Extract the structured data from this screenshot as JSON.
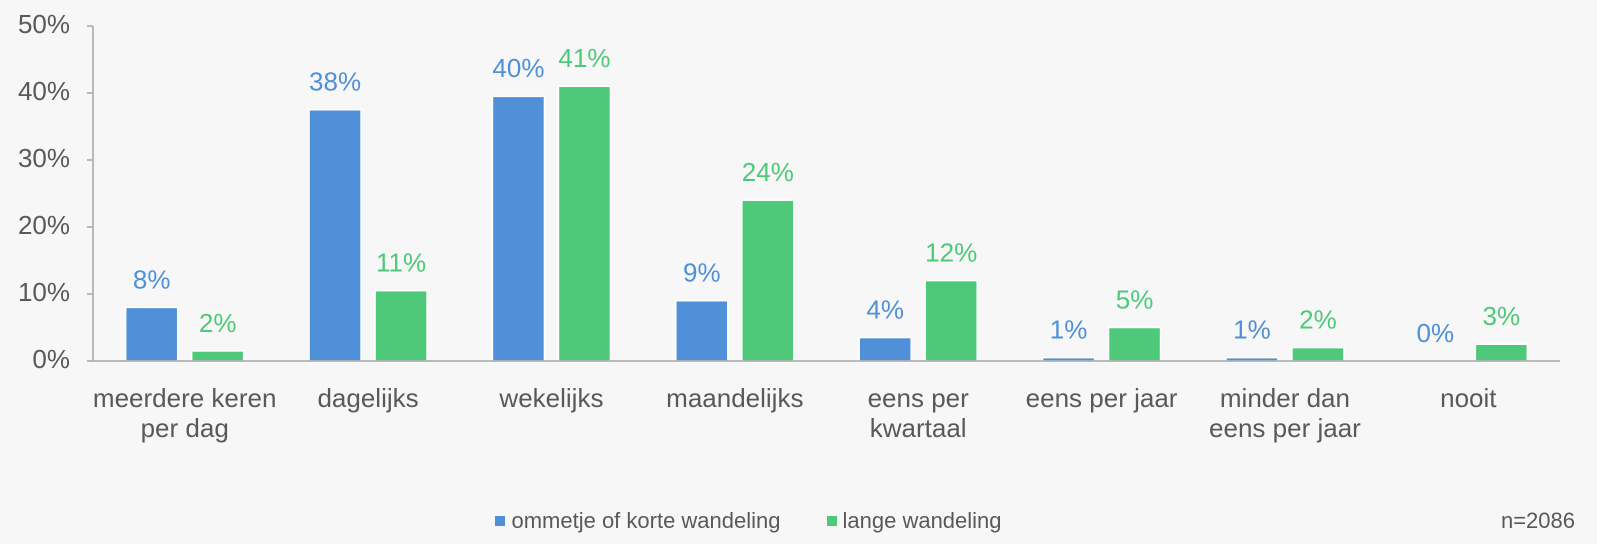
{
  "chart_data": {
    "type": "bar",
    "categories": [
      "meerdere keren per dag",
      "dagelijks",
      "wekelijks",
      "maandelijks",
      "eens per kwartaal",
      "eens per jaar",
      "minder dan eens per jaar",
      "nooit"
    ],
    "series": [
      {
        "name": "ommetje of korte wandeling",
        "color": "#4f90d8",
        "values": [
          8,
          37.5,
          39.5,
          9,
          3.5,
          0.5,
          0.5,
          0
        ],
        "value_labels": [
          "8%",
          "38%",
          "40%",
          "9%",
          "4%",
          "1%",
          "1%",
          "0%"
        ]
      },
      {
        "name": "lange wandeling",
        "color": "#4ec97a",
        "values": [
          1.5,
          10.5,
          41,
          24,
          12,
          5,
          2,
          2.5
        ],
        "value_labels": [
          "2%",
          "11%",
          "41%",
          "24%",
          "12%",
          "5%",
          "2%",
          "3%"
        ]
      }
    ],
    "ylim": [
      0,
      50
    ],
    "yticks": [
      {
        "value": 0,
        "label": "0%"
      },
      {
        "value": 10,
        "label": "10%"
      },
      {
        "value": 20,
        "label": "20%"
      },
      {
        "value": 30,
        "label": "30%"
      },
      {
        "value": 40,
        "label": "40%"
      },
      {
        "value": 50,
        "label": "50%"
      }
    ],
    "grid": false,
    "legend": "bottom",
    "annotation": "n=2086"
  }
}
